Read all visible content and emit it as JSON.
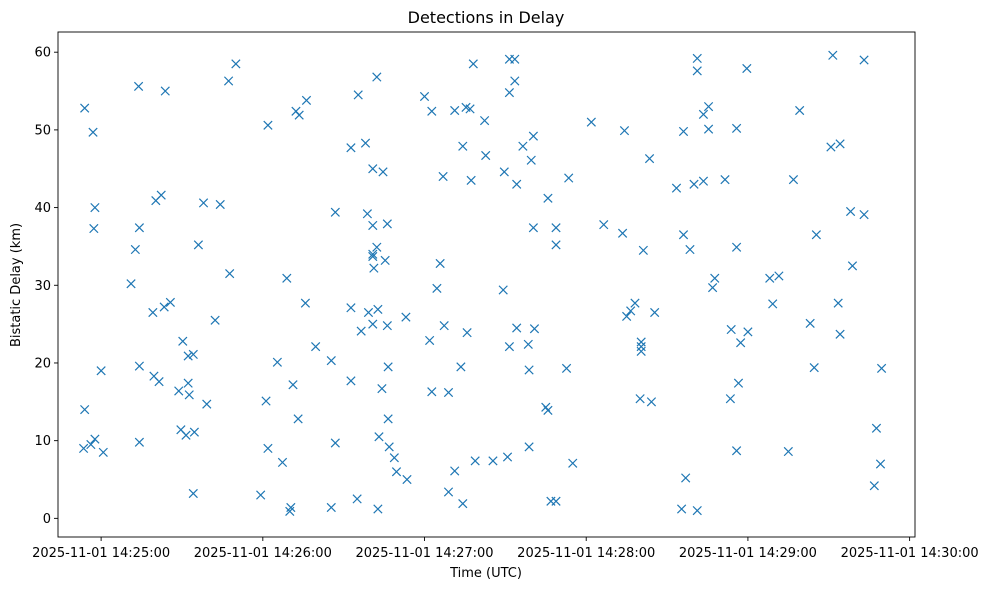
{
  "chart_data": {
    "type": "scatter",
    "title": "Detections in Delay",
    "xlabel": "Time (UTC)",
    "ylabel": "Bistatic Delay (km)",
    "marker": "x",
    "color": "#1f77b4",
    "grid": false,
    "xlim": [
      "2025-11-01 14:24:44",
      "2025-11-01 14:30:02"
    ],
    "ylim": [
      -2.4,
      62.6
    ],
    "xticks": [
      "2025-11-01 14:25:00",
      "2025-11-01 14:26:00",
      "2025-11-01 14:27:00",
      "2025-11-01 14:28:00",
      "2025-11-01 14:29:00",
      "2025-11-01 14:30:00"
    ],
    "yticks": [
      0,
      10,
      20,
      30,
      40,
      50,
      60
    ],
    "points": [
      [
        "2025-11-01 14:24:53.5",
        9.0
      ],
      [
        "2025-11-01 14:24:53.9",
        14.0
      ],
      [
        "2025-11-01 14:24:53.9",
        52.8
      ],
      [
        "2025-11-01 14:24:56.2",
        9.5
      ],
      [
        "2025-11-01 14:24:57.0",
        49.7
      ],
      [
        "2025-11-01 14:24:57.3",
        37.3
      ],
      [
        "2025-11-01 14:24:57.7",
        10.2
      ],
      [
        "2025-11-01 14:24:57.7",
        40.0
      ],
      [
        "2025-11-01 14:25:00.0",
        19.0
      ],
      [
        "2025-11-01 14:25:00.8",
        8.5
      ],
      [
        "2025-11-01 14:25:11.1",
        30.2
      ],
      [
        "2025-11-01 14:25:12.7",
        34.6
      ],
      [
        "2025-11-01 14:25:13.9",
        55.6
      ],
      [
        "2025-11-01 14:25:14.2",
        9.8
      ],
      [
        "2025-11-01 14:25:14.2",
        37.4
      ],
      [
        "2025-11-01 14:25:14.2",
        19.6
      ],
      [
        "2025-11-01 14:25:19.2",
        26.5
      ],
      [
        "2025-11-01 14:25:19.6",
        18.3
      ],
      [
        "2025-11-01 14:25:20.3",
        40.9
      ],
      [
        "2025-11-01 14:25:21.5",
        17.6
      ],
      [
        "2025-11-01 14:25:22.3",
        41.6
      ],
      [
        "2025-11-01 14:25:23.8",
        55.0
      ],
      [
        "2025-11-01 14:25:23.4",
        27.2
      ],
      [
        "2025-11-01 14:25:25.7",
        27.8
      ],
      [
        "2025-11-01 14:25:28.8",
        16.4
      ],
      [
        "2025-11-01 14:25:29.6",
        11.4
      ],
      [
        "2025-11-01 14:25:30.3",
        22.8
      ],
      [
        "2025-11-01 14:25:31.5",
        10.7
      ],
      [
        "2025-11-01 14:25:32.3",
        17.4
      ],
      [
        "2025-11-01 14:25:32.3",
        20.9
      ],
      [
        "2025-11-01 14:25:32.7",
        15.9
      ],
      [
        "2025-11-01 14:25:34.2",
        21.1
      ],
      [
        "2025-11-01 14:25:34.2",
        3.2
      ],
      [
        "2025-11-01 14:25:34.6",
        11.1
      ],
      [
        "2025-11-01 14:25:36.1",
        35.2
      ],
      [
        "2025-11-01 14:25:38.0",
        40.6
      ],
      [
        "2025-11-01 14:25:39.2",
        14.7
      ],
      [
        "2025-11-01 14:25:42.3",
        25.5
      ],
      [
        "2025-11-01 14:25:44.2",
        40.4
      ],
      [
        "2025-11-01 14:25:47.3",
        56.3
      ],
      [
        "2025-11-01 14:25:47.7",
        31.5
      ],
      [
        "2025-11-01 14:25:50.0",
        58.5
      ],
      [
        "2025-11-01 14:25:59.2",
        3.0
      ],
      [
        "2025-11-01 14:26:01.2",
        15.1
      ],
      [
        "2025-11-01 14:26:01.9",
        9.0
      ],
      [
        "2025-11-01 14:26:01.9",
        50.6
      ],
      [
        "2025-11-01 14:26:05.4",
        20.1
      ],
      [
        "2025-11-01 14:26:07.3",
        7.2
      ],
      [
        "2025-11-01 14:26:08.9",
        30.9
      ],
      [
        "2025-11-01 14:26:10.0",
        0.9
      ],
      [
        "2025-11-01 14:26:10.4",
        1.4
      ],
      [
        "2025-11-01 14:26:11.2",
        17.2
      ],
      [
        "2025-11-01 14:26:12.3",
        52.4
      ],
      [
        "2025-11-01 14:26:13.1",
        12.8
      ],
      [
        "2025-11-01 14:26:13.5",
        51.9
      ],
      [
        "2025-11-01 14:26:15.8",
        27.7
      ],
      [
        "2025-11-01 14:26:16.2",
        53.8
      ],
      [
        "2025-11-01 14:26:19.6",
        22.1
      ],
      [
        "2025-11-01 14:26:25.4",
        20.3
      ],
      [
        "2025-11-01 14:26:25.4",
        1.4
      ],
      [
        "2025-11-01 14:26:26.9",
        39.4
      ],
      [
        "2025-11-01 14:26:26.9",
        9.7
      ],
      [
        "2025-11-01 14:26:32.7",
        47.7
      ],
      [
        "2025-11-01 14:26:32.7",
        27.1
      ],
      [
        "2025-11-01 14:26:32.7",
        17.7
      ],
      [
        "2025-11-01 14:26:35.0",
        2.5
      ],
      [
        "2025-11-01 14:26:35.4",
        54.5
      ],
      [
        "2025-11-01 14:26:36.5",
        24.1
      ],
      [
        "2025-11-01 14:26:38.1",
        48.3
      ],
      [
        "2025-11-01 14:26:38.8",
        39.2
      ],
      [
        "2025-11-01 14:26:39.2",
        26.5
      ],
      [
        "2025-11-01 14:26:40.8",
        33.7
      ],
      [
        "2025-11-01 14:26:40.8",
        34.0
      ],
      [
        "2025-11-01 14:26:40.8",
        25.0
      ],
      [
        "2025-11-01 14:26:40.8",
        37.7
      ],
      [
        "2025-11-01 14:26:40.8",
        45.0
      ],
      [
        "2025-11-01 14:26:41.2",
        32.2
      ],
      [
        "2025-11-01 14:26:42.3",
        34.9
      ],
      [
        "2025-11-01 14:26:42.3",
        56.8
      ],
      [
        "2025-11-01 14:26:42.7",
        26.9
      ],
      [
        "2025-11-01 14:26:42.7",
        1.2
      ],
      [
        "2025-11-01 14:26:43.1",
        10.5
      ],
      [
        "2025-11-01 14:26:44.2",
        16.7
      ],
      [
        "2025-11-01 14:26:44.6",
        44.6
      ],
      [
        "2025-11-01 14:26:45.4",
        33.2
      ],
      [
        "2025-11-01 14:26:46.2",
        24.8
      ],
      [
        "2025-11-01 14:26:46.2",
        37.9
      ],
      [
        "2025-11-01 14:26:46.5",
        19.5
      ],
      [
        "2025-11-01 14:26:46.5",
        12.8
      ],
      [
        "2025-11-01 14:26:46.9",
        9.2
      ],
      [
        "2025-11-01 14:26:48.8",
        7.8
      ],
      [
        "2025-11-01 14:26:49.6",
        6.0
      ],
      [
        "2025-11-01 14:26:53.1",
        25.9
      ],
      [
        "2025-11-01 14:26:53.5",
        5.0
      ],
      [
        "2025-11-01 14:27:00.0",
        54.3
      ],
      [
        "2025-11-01 14:27:01.9",
        22.9
      ],
      [
        "2025-11-01 14:27:02.7",
        52.4
      ],
      [
        "2025-11-01 14:27:02.7",
        16.3
      ],
      [
        "2025-11-01 14:27:04.6",
        29.6
      ],
      [
        "2025-11-01 14:27:05.8",
        32.8
      ],
      [
        "2025-11-01 14:27:06.9",
        44.0
      ],
      [
        "2025-11-01 14:27:07.3",
        24.8
      ],
      [
        "2025-11-01 14:27:08.9",
        3.4
      ],
      [
        "2025-11-01 14:27:08.9",
        16.2
      ],
      [
        "2025-11-01 14:27:11.2",
        52.5
      ],
      [
        "2025-11-01 14:27:11.2",
        6.1
      ],
      [
        "2025-11-01 14:27:13.5",
        19.5
      ],
      [
        "2025-11-01 14:27:14.2",
        1.9
      ],
      [
        "2025-11-01 14:27:14.2",
        47.9
      ],
      [
        "2025-11-01 14:27:15.4",
        52.9
      ],
      [
        "2025-11-01 14:27:15.8",
        23.9
      ],
      [
        "2025-11-01 14:27:16.9",
        52.7
      ],
      [
        "2025-11-01 14:27:17.3",
        43.5
      ],
      [
        "2025-11-01 14:27:18.1",
        58.5
      ],
      [
        "2025-11-01 14:27:18.8",
        7.4
      ],
      [
        "2025-11-01 14:27:22.3",
        51.2
      ],
      [
        "2025-11-01 14:27:22.7",
        46.7
      ],
      [
        "2025-11-01 14:27:25.4",
        7.4
      ],
      [
        "2025-11-01 14:27:29.6",
        44.6
      ],
      [
        "2025-11-01 14:27:29.2",
        29.4
      ],
      [
        "2025-11-01 14:27:30.8",
        7.9
      ],
      [
        "2025-11-01 14:27:31.5",
        54.8
      ],
      [
        "2025-11-01 14:27:31.5",
        59.1
      ],
      [
        "2025-11-01 14:27:31.5",
        22.1
      ],
      [
        "2025-11-01 14:27:33.5",
        59.1
      ],
      [
        "2025-11-01 14:27:33.5",
        56.3
      ],
      [
        "2025-11-01 14:27:34.2",
        43.0
      ],
      [
        "2025-11-01 14:27:34.2",
        24.5
      ],
      [
        "2025-11-01 14:27:36.5",
        47.9
      ],
      [
        "2025-11-01 14:27:38.5",
        22.4
      ],
      [
        "2025-11-01 14:27:38.8",
        9.2
      ],
      [
        "2025-11-01 14:27:38.8",
        19.1
      ],
      [
        "2025-11-01 14:27:39.6",
        46.1
      ],
      [
        "2025-11-01 14:27:40.4",
        49.2
      ],
      [
        "2025-11-01 14:27:40.4",
        37.4
      ],
      [
        "2025-11-01 14:27:40.8",
        24.4
      ],
      [
        "2025-11-01 14:27:45.0",
        14.3
      ],
      [
        "2025-11-01 14:27:45.8",
        41.2
      ],
      [
        "2025-11-01 14:27:45.8",
        13.9
      ],
      [
        "2025-11-01 14:27:46.9",
        2.2
      ],
      [
        "2025-11-01 14:27:48.8",
        2.2
      ],
      [
        "2025-11-01 14:27:48.8",
        37.4
      ],
      [
        "2025-11-01 14:27:48.8",
        35.2
      ],
      [
        "2025-11-01 14:27:52.7",
        19.3
      ],
      [
        "2025-11-01 14:27:53.5",
        43.8
      ],
      [
        "2025-11-01 14:27:55.0",
        7.1
      ],
      [
        "2025-11-01 14:28:01.9",
        51.0
      ],
      [
        "2025-11-01 14:28:06.5",
        37.8
      ],
      [
        "2025-11-01 14:28:13.5",
        36.7
      ],
      [
        "2025-11-01 14:28:14.2",
        49.9
      ],
      [
        "2025-11-01 14:28:15.0",
        26.0
      ],
      [
        "2025-11-01 14:28:16.5",
        26.7
      ],
      [
        "2025-11-01 14:28:18.1",
        27.7
      ],
      [
        "2025-11-01 14:28:20.0",
        15.4
      ],
      [
        "2025-11-01 14:28:20.4",
        22.7
      ],
      [
        "2025-11-01 14:28:20.4",
        22.1
      ],
      [
        "2025-11-01 14:28:20.4",
        21.5
      ],
      [
        "2025-11-01 14:28:21.2",
        34.5
      ],
      [
        "2025-11-01 14:28:23.5",
        46.3
      ],
      [
        "2025-11-01 14:28:24.2",
        15.0
      ],
      [
        "2025-11-01 14:28:25.4",
        26.5
      ],
      [
        "2025-11-01 14:28:33.5",
        42.5
      ],
      [
        "2025-11-01 14:28:35.4",
        1.2
      ],
      [
        "2025-11-01 14:28:36.1",
        36.5
      ],
      [
        "2025-11-01 14:28:36.1",
        49.8
      ],
      [
        "2025-11-01 14:28:36.9",
        5.2
      ],
      [
        "2025-11-01 14:28:38.5",
        34.6
      ],
      [
        "2025-11-01 14:28:40.0",
        43.0
      ],
      [
        "2025-11-01 14:28:41.2",
        1.0
      ],
      [
        "2025-11-01 14:28:41.2",
        57.6
      ],
      [
        "2025-11-01 14:28:41.2",
        59.2
      ],
      [
        "2025-11-01 14:28:43.5",
        43.4
      ],
      [
        "2025-11-01 14:28:43.5",
        52.0
      ],
      [
        "2025-11-01 14:28:45.4",
        50.1
      ],
      [
        "2025-11-01 14:28:45.4",
        53.0
      ],
      [
        "2025-11-01 14:28:46.9",
        29.7
      ],
      [
        "2025-11-01 14:28:47.7",
        30.9
      ],
      [
        "2025-11-01 14:28:51.5",
        43.6
      ],
      [
        "2025-11-01 14:28:53.5",
        15.4
      ],
      [
        "2025-11-01 14:28:53.8",
        24.3
      ],
      [
        "2025-11-01 14:28:55.8",
        50.2
      ],
      [
        "2025-11-01 14:28:55.8",
        34.9
      ],
      [
        "2025-11-01 14:28:55.8",
        8.7
      ],
      [
        "2025-11-01 14:28:56.5",
        17.4
      ],
      [
        "2025-11-01 14:28:57.3",
        22.6
      ],
      [
        "2025-11-01 14:28:59.6",
        57.9
      ],
      [
        "2025-11-01 14:29:00.0",
        24.0
      ],
      [
        "2025-11-01 14:29:08.1",
        30.9
      ],
      [
        "2025-11-01 14:29:09.2",
        27.6
      ],
      [
        "2025-11-01 14:29:11.5",
        31.2
      ],
      [
        "2025-11-01 14:29:15.0",
        8.6
      ],
      [
        "2025-11-01 14:29:16.9",
        43.6
      ],
      [
        "2025-11-01 14:29:19.2",
        52.5
      ],
      [
        "2025-11-01 14:29:23.1",
        25.1
      ],
      [
        "2025-11-01 14:29:24.6",
        19.4
      ],
      [
        "2025-11-01 14:29:25.4",
        36.5
      ],
      [
        "2025-11-01 14:29:30.8",
        47.8
      ],
      [
        "2025-11-01 14:29:31.5",
        59.6
      ],
      [
        "2025-11-01 14:29:33.5",
        27.7
      ],
      [
        "2025-11-01 14:29:34.2",
        23.7
      ],
      [
        "2025-11-01 14:29:34.2",
        48.2
      ],
      [
        "2025-11-01 14:29:38.1",
        39.5
      ],
      [
        "2025-11-01 14:29:38.8",
        32.5
      ],
      [
        "2025-11-01 14:29:43.1",
        59.0
      ],
      [
        "2025-11-01 14:29:43.1",
        39.1
      ],
      [
        "2025-11-01 14:29:46.9",
        4.2
      ],
      [
        "2025-11-01 14:29:47.7",
        11.6
      ],
      [
        "2025-11-01 14:29:49.2",
        7.0
      ],
      [
        "2025-11-01 14:29:49.6",
        19.3
      ]
    ]
  }
}
